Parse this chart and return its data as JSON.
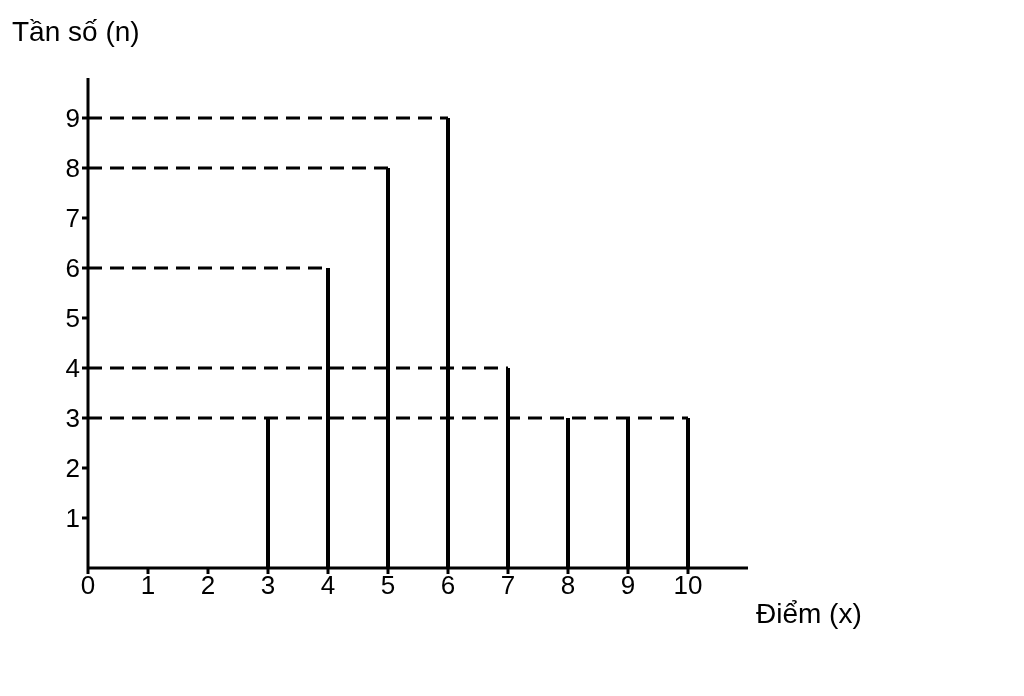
{
  "chart_data": {
    "type": "bar",
    "xlabel": "Điểm (x)",
    "ylabel": "Tần số (n)",
    "ref_lines": [
      {
        "axis": "y",
        "value": 9,
        "line_style": "dashed"
      },
      {
        "axis": "y",
        "value": 8,
        "line_style": "dashed"
      },
      {
        "axis": "y",
        "value": 6,
        "line_style": "dashed"
      },
      {
        "axis": "y",
        "value": 4,
        "line_style": "dashed"
      },
      {
        "axis": "y",
        "value": 3,
        "line_style": "dashed"
      }
    ],
    "x": [
      3,
      4,
      5,
      6,
      7,
      8,
      9,
      10
    ],
    "values": [
      3,
      6,
      8,
      9,
      4,
      3,
      3,
      3
    ],
    "color": "#000000",
    "xlim": [
      0,
      11
    ],
    "xticks": [
      0,
      1,
      2,
      3,
      4,
      5,
      6,
      7,
      8,
      9,
      10
    ],
    "ylim": [
      0,
      9.8
    ],
    "yticks": [
      1,
      2,
      3,
      4,
      5,
      6,
      7,
      8,
      9
    ],
    "grid": false,
    "legend": false
  }
}
